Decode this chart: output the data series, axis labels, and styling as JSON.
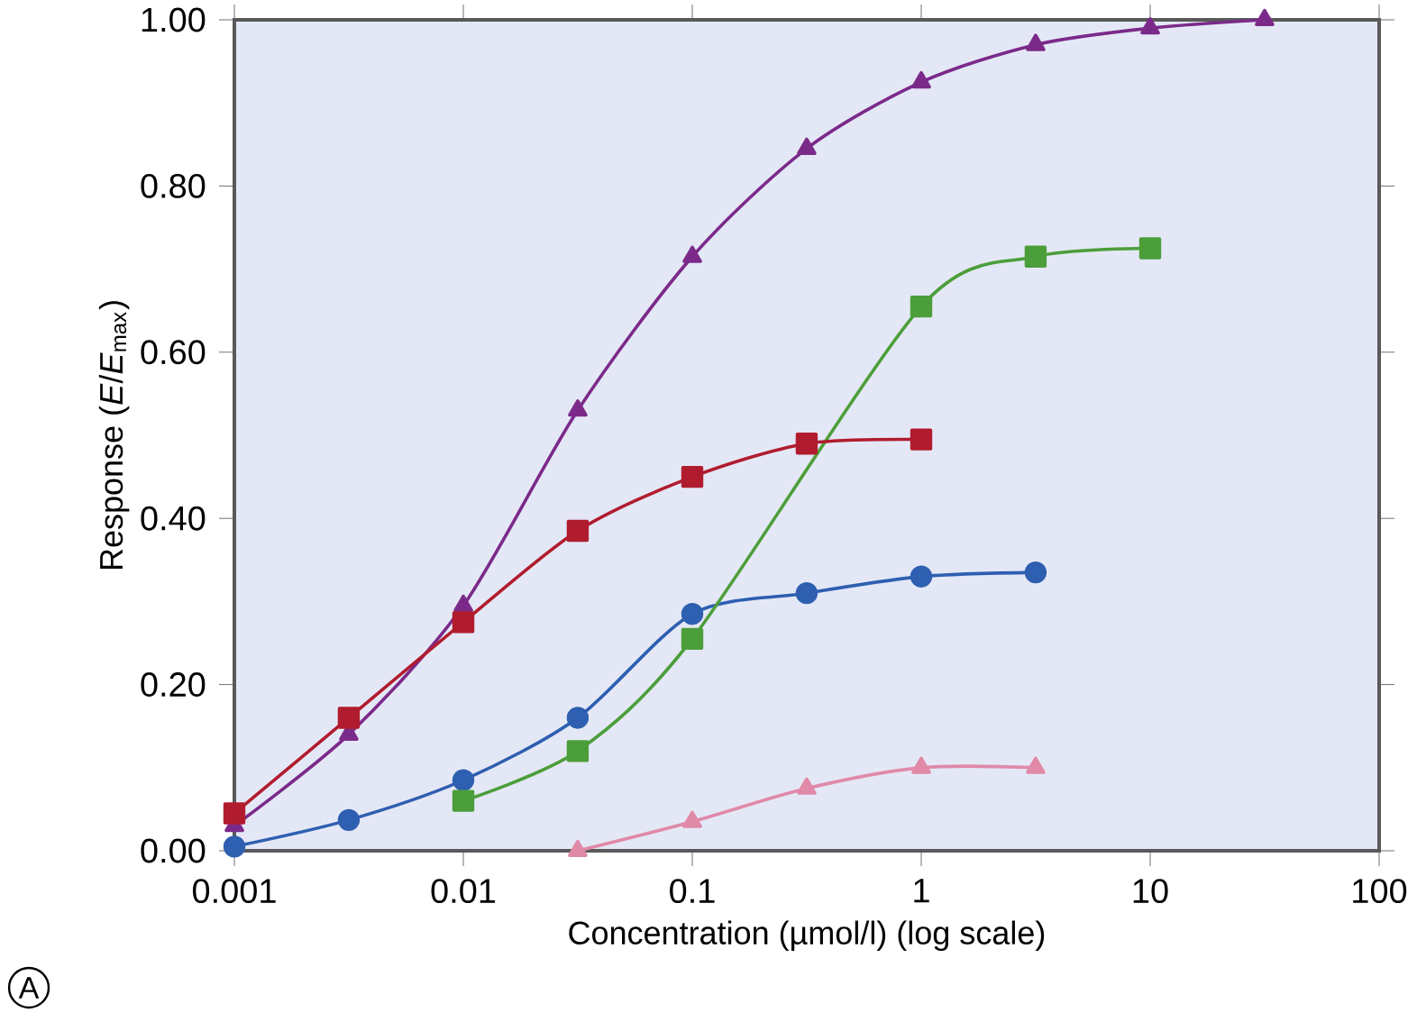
{
  "chart_data": {
    "type": "line",
    "xlabel": "Concentration (µmol/l) (log scale)",
    "ylabel": "Response (*E*/*E*$_{max}$)",
    "annotations": [
      "A"
    ],
    "log": "x",
    "xlim": [
      0.001,
      100
    ],
    "xticks": [
      0.001,
      0.01,
      0.1,
      1,
      10,
      100
    ],
    "ylim": [
      0,
      1.0
    ],
    "yticks": [
      {
        "value": 0,
        "label": "0.00"
      },
      {
        "value": 0.2,
        "label": "0.20"
      },
      {
        "value": 0.4,
        "label": "0.40"
      },
      {
        "value": 0.6,
        "label": "0.60"
      },
      {
        "value": 0.8,
        "label": "0.80"
      },
      {
        "value": 1.0,
        "label": "1.00"
      }
    ],
    "series": [
      {
        "color": "#7b2a8a",
        "marker": "triangle",
        "x": [
          0.001,
          0.00316,
          0.01,
          0.0316,
          0.1,
          0.316,
          1,
          3.16,
          10,
          31.6
        ],
        "values": [
          0.03,
          0.14,
          0.295,
          0.53,
          0.715,
          0.845,
          0.925,
          0.97,
          0.99,
          1.0
        ]
      },
      {
        "color": "#2e5fb0",
        "marker": "circle",
        "x": [
          0.001,
          0.00316,
          0.01,
          0.0316,
          0.1,
          0.316,
          1,
          3.16
        ],
        "values": [
          0.005,
          0.037,
          0.085,
          0.16,
          0.285,
          0.31,
          0.33,
          0.335
        ]
      },
      {
        "color": "#4c9e3a",
        "marker": "square",
        "x": [
          0.01,
          0.0316,
          0.1,
          0.316,
          1,
          3.16,
          10
        ],
        "values": [
          0.06,
          0.12,
          0.255,
          null,
          0.655,
          0.715,
          0.725
        ]
      },
      {
        "color": "#b01c2e",
        "marker": "square",
        "x": [
          0.001,
          0.00316,
          0.01,
          0.0316,
          0.1,
          0.316,
          1
        ],
        "values": [
          0.045,
          0.16,
          0.275,
          0.385,
          0.45,
          0.49,
          0.495
        ]
      },
      {
        "color": "#e08aa8",
        "marker": "triangle",
        "x": [
          0.0316,
          0.1,
          0.316,
          1,
          3.16
        ],
        "values": [
          0.0,
          0.035,
          0.075,
          0.1,
          0.1
        ]
      }
    ]
  }
}
